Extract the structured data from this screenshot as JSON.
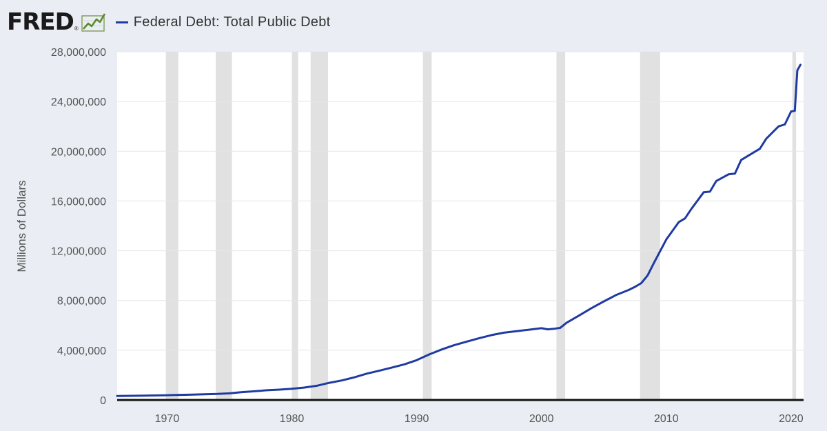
{
  "header": {
    "logo_text": "FRED",
    "logo_mark": "®",
    "logo_icon": "fred-chart-icon"
  },
  "chart_data": {
    "type": "line",
    "title": "",
    "xlabel": "",
    "ylabel": "Millions of Dollars",
    "legend": [
      "Federal Debt: Total Public Debt"
    ],
    "legend_position": "top-left",
    "grid": true,
    "xlim": [
      1966.0,
      2021.0
    ],
    "ylim": [
      0,
      28000000
    ],
    "x_ticks": [
      1970,
      1980,
      1990,
      2000,
      2010,
      2020
    ],
    "x_tick_labels": [
      "1970",
      "1980",
      "1990",
      "2000",
      "2010",
      "2020"
    ],
    "y_ticks": [
      0,
      4000000,
      8000000,
      12000000,
      16000000,
      20000000,
      24000000,
      28000000
    ],
    "y_tick_labels": [
      "0",
      "4,000,000",
      "8,000,000",
      "12,000,000",
      "16,000,000",
      "20,000,000",
      "24,000,000",
      "28,000,000"
    ],
    "line_color": "#1f3aa1",
    "recession_color": "#e1e1e1",
    "recessions": [
      [
        1969.9,
        1970.9
      ],
      [
        1973.9,
        1975.2
      ],
      [
        1980.0,
        1980.5
      ],
      [
        1981.5,
        1982.9
      ],
      [
        1990.5,
        1991.2
      ],
      [
        2001.2,
        2001.9
      ],
      [
        2007.9,
        2009.5
      ],
      [
        2020.1,
        2020.4
      ]
    ],
    "series": [
      {
        "name": "Federal Debt: Total Public Debt",
        "x": [
          1966.0,
          1968.0,
          1970.0,
          1972.0,
          1974.0,
          1975.0,
          1976.0,
          1977.0,
          1978.0,
          1979.0,
          1980.0,
          1981.0,
          1982.0,
          1983.0,
          1984.0,
          1985.0,
          1986.0,
          1987.0,
          1988.0,
          1989.0,
          1990.0,
          1991.0,
          1992.0,
          1993.0,
          1994.0,
          1995.0,
          1996.0,
          1997.0,
          1998.0,
          1999.0,
          2000.0,
          2000.5,
          2001.0,
          2001.5,
          2002.0,
          2003.0,
          2004.0,
          2005.0,
          2006.0,
          2007.0,
          2007.5,
          2008.0,
          2008.5,
          2009.0,
          2010.0,
          2011.0,
          2011.5,
          2012.0,
          2013.0,
          2013.5,
          2014.0,
          2015.0,
          2015.5,
          2016.0,
          2017.0,
          2017.5,
          2018.0,
          2019.0,
          2019.5,
          2020.0,
          2020.3,
          2020.5,
          2020.75
        ],
        "values": [
          320000,
          345000,
          380000,
          430000,
          480000,
          530000,
          630000,
          700000,
          780000,
          830000,
          900000,
          1000000,
          1140000,
          1380000,
          1570000,
          1820000,
          2120000,
          2350000,
          2600000,
          2860000,
          3200000,
          3660000,
          4060000,
          4400000,
          4690000,
          4970000,
          5220000,
          5410000,
          5530000,
          5650000,
          5770000,
          5680000,
          5720000,
          5800000,
          6200000,
          6780000,
          7380000,
          7930000,
          8450000,
          8850000,
          9100000,
          9400000,
          10000000,
          11000000,
          12900000,
          14300000,
          14600000,
          15350000,
          16700000,
          16750000,
          17600000,
          18150000,
          18200000,
          19300000,
          19900000,
          20200000,
          21000000,
          22000000,
          22150000,
          23200000,
          23250000,
          26500000,
          26950000
        ]
      }
    ]
  }
}
